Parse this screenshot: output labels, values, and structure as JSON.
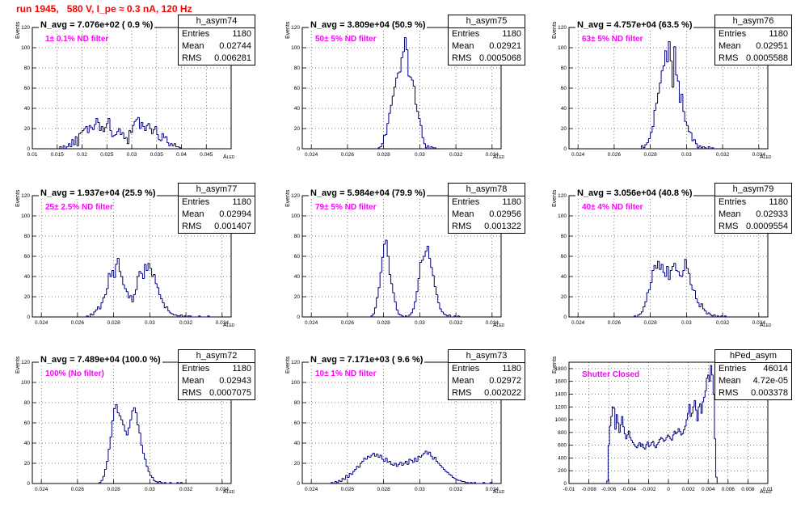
{
  "page": {
    "title": "run 1945,   580 V, I_pe ≈ 0.3 nA, 120 Hz",
    "ylabel": "Events",
    "xlabel_main": "A",
    "xlabel_sub": "LED"
  },
  "chart_data": [
    {
      "type": "histogram",
      "name": "h_asym74",
      "navg": "N_avg = 7.076e+02 ( 0.9 %)",
      "filter": "1± 0.1% ND filter",
      "stats": {
        "entries": "1180",
        "mean": "0.02744",
        "rms": "0.006281"
      },
      "xlim": [
        0.01,
        0.05
      ],
      "ylim": [
        0,
        120
      ],
      "xticks": [
        "0.01",
        "0.015",
        "0.02",
        "0.025",
        "0.03",
        "0.035",
        "0.04",
        "0.045"
      ],
      "yticks": [
        "0",
        "20",
        "40",
        "60",
        "80",
        "100",
        "120"
      ],
      "bin_edges": [
        0.0155,
        0.0399
      ],
      "values": [
        2,
        0,
        3,
        0,
        2,
        5,
        2,
        9,
        4,
        12,
        3,
        15,
        16,
        18,
        20,
        22,
        16,
        23,
        21,
        19,
        24,
        30,
        26,
        18,
        22,
        17,
        21,
        25,
        30,
        18,
        12,
        13,
        14,
        17,
        20,
        14,
        16,
        10,
        11,
        5,
        18,
        16,
        23,
        27,
        29,
        31,
        20,
        26,
        22,
        18,
        23,
        25,
        20,
        15,
        19,
        22,
        14,
        9,
        8,
        15,
        11,
        12,
        6,
        3,
        5,
        3,
        5,
        2,
        2,
        1
      ]
    },
    {
      "type": "histogram",
      "name": "h_asym75",
      "navg": "N_avg = 3.809e+04 (50.9 %)",
      "filter": "50± 5% ND filter",
      "stats": {
        "entries": "1180",
        "mean": "0.02921",
        "rms": "0.0005068"
      },
      "xlim": [
        0.0235,
        0.0345
      ],
      "ylim": [
        0,
        120
      ],
      "xticks": [
        "0.024",
        "0.026",
        "0.028",
        "0.03",
        "0.032",
        "0.034"
      ],
      "yticks": [
        "0",
        "20",
        "40",
        "60",
        "80",
        "100",
        "120"
      ],
      "bin_edges": [
        0.0277,
        0.0309
      ],
      "values": [
        1,
        2,
        5,
        13,
        14,
        25,
        35,
        43,
        52,
        61,
        70,
        75,
        76,
        90,
        96,
        110,
        98,
        72,
        71,
        68,
        62,
        44,
        37,
        30,
        23,
        11,
        5,
        1,
        3,
        0,
        2,
        1,
        1
      ]
    },
    {
      "type": "histogram",
      "name": "h_asym76",
      "navg": "N_avg = 4.757e+04 (63.5 %)",
      "filter": "63± 5% ND filter",
      "stats": {
        "entries": "1180",
        "mean": "0.02951",
        "rms": "0.0005588"
      },
      "xlim": [
        0.0235,
        0.0345
      ],
      "ylim": [
        0,
        120
      ],
      "xticks": [
        "0.024",
        "0.026",
        "0.028",
        "0.03",
        "0.032",
        "0.034"
      ],
      "yticks": [
        "0",
        "20",
        "40",
        "60",
        "80",
        "100",
        "120"
      ],
      "bin_edges": [
        0.0275,
        0.0315
      ],
      "values": [
        3,
        1,
        4,
        6,
        10,
        16,
        22,
        38,
        45,
        55,
        65,
        77,
        82,
        97,
        86,
        106,
        87,
        61,
        101,
        73,
        67,
        46,
        54,
        37,
        27,
        23,
        17,
        16,
        8,
        9,
        5,
        1,
        3,
        1,
        2,
        1,
        0,
        2,
        0,
        1
      ]
    },
    {
      "type": "histogram",
      "name": "h_asym77",
      "navg": "N_avg = 1.937e+04 (25.9 %)",
      "filter": "25± 2.5% ND filter",
      "stats": {
        "entries": "1180",
        "mean": "0.02994",
        "rms": "0.001407"
      },
      "xlim": [
        0.0235,
        0.0345
      ],
      "ylim": [
        0,
        120
      ],
      "xticks": [
        "0.024",
        "0.026",
        "0.028",
        "0.03",
        "0.032",
        "0.034"
      ],
      "yticks": [
        "0",
        "20",
        "40",
        "60",
        "80",
        "100",
        "120"
      ],
      "bin_edges": [
        0.0265,
        0.0333
      ],
      "values": [
        1,
        0,
        3,
        2,
        5,
        7,
        10,
        8,
        14,
        19,
        22,
        28,
        43,
        40,
        46,
        39,
        52,
        58,
        45,
        40,
        32,
        28,
        25,
        19,
        21,
        15,
        22,
        27,
        40,
        45,
        43,
        38,
        52,
        46,
        53,
        48,
        40,
        42,
        33,
        29,
        22,
        18,
        14,
        9,
        10,
        6,
        4,
        3,
        2,
        2,
        1,
        1,
        2,
        0,
        1,
        0,
        1,
        1,
        0,
        0,
        0,
        0,
        1,
        0,
        0,
        0,
        0,
        1
      ]
    },
    {
      "type": "histogram",
      "name": "h_asym78",
      "navg": "N_avg = 5.984e+04 (79.9 %)",
      "filter": "79± 5% ND filter",
      "stats": {
        "entries": "1180",
        "mean": "0.02956",
        "rms": "0.001322"
      },
      "xlim": [
        0.0235,
        0.0345
      ],
      "ylim": [
        0,
        120
      ],
      "xticks": [
        "0.024",
        "0.026",
        "0.028",
        "0.03",
        "0.032",
        "0.034"
      ],
      "yticks": [
        "0",
        "20",
        "40",
        "60",
        "80",
        "100",
        "120"
      ],
      "bin_edges": [
        0.0273,
        0.0322
      ],
      "values": [
        1,
        3,
        9,
        19,
        29,
        44,
        59,
        72,
        76,
        60,
        42,
        33,
        24,
        15,
        7,
        3,
        2,
        1,
        0,
        1,
        0,
        2,
        4,
        8,
        15,
        25,
        38,
        54,
        56,
        60,
        65,
        70,
        58,
        49,
        41,
        30,
        22,
        14,
        8,
        5,
        3,
        2,
        1,
        2,
        0,
        0,
        1,
        0,
        1
      ]
    },
    {
      "type": "histogram",
      "name": "h_asym79",
      "navg": "N_avg = 3.056e+04 (40.8 %)",
      "filter": "40± 4% ND filter",
      "stats": {
        "entries": "1180",
        "mean": "0.02933",
        "rms": "0.0009554"
      },
      "xlim": [
        0.0235,
        0.0345
      ],
      "ylim": [
        0,
        120
      ],
      "xticks": [
        "0.024",
        "0.026",
        "0.028",
        "0.03",
        "0.032",
        "0.034"
      ],
      "yticks": [
        "0",
        "20",
        "40",
        "60",
        "80",
        "100",
        "120"
      ],
      "bin_edges": [
        0.0271,
        0.0322
      ],
      "values": [
        1,
        0,
        2,
        3,
        5,
        10,
        15,
        24,
        27,
        34,
        46,
        51,
        48,
        55,
        47,
        52,
        44,
        40,
        50,
        37,
        46,
        50,
        53,
        46,
        45,
        41,
        40,
        46,
        57,
        48,
        43,
        32,
        27,
        26,
        18,
        14,
        10,
        13,
        8,
        6,
        3,
        4,
        2,
        1,
        2,
        0,
        1,
        0,
        1,
        0,
        1
      ]
    },
    {
      "type": "histogram",
      "name": "h_asym72",
      "navg": "N_avg = 7.489e+04 (100.0 %)",
      "filter": "100% (No filter)",
      "stats": {
        "entries": "1180",
        "mean": "0.02943",
        "rms": "0.0007075"
      },
      "xlim": [
        0.0235,
        0.0345
      ],
      "ylim": [
        0,
        120
      ],
      "xticks": [
        "0.024",
        "0.026",
        "0.028",
        "0.03",
        "0.032",
        "0.034"
      ],
      "yticks": [
        "0",
        "20",
        "40",
        "60",
        "80",
        "100",
        "120"
      ],
      "bin_edges": [
        0.0272,
        0.0318
      ],
      "values": [
        1,
        3,
        7,
        14,
        22,
        34,
        46,
        62,
        74,
        78,
        70,
        67,
        63,
        58,
        52,
        48,
        55,
        63,
        72,
        75,
        70,
        58,
        50,
        38,
        30,
        24,
        17,
        12,
        8,
        6,
        3,
        2,
        1,
        2,
        1,
        0,
        1,
        0,
        0,
        1,
        0,
        0,
        0,
        1,
        0,
        1
      ]
    },
    {
      "type": "histogram",
      "name": "h_asym73",
      "navg": "N_avg = 7.171e+03 ( 9.6 %)",
      "filter": "10± 1% ND filter",
      "stats": {
        "entries": "1180",
        "mean": "0.02972",
        "rms": "0.002022"
      },
      "xlim": [
        0.0235,
        0.0345
      ],
      "ylim": [
        0,
        120
      ],
      "xticks": [
        "0.024",
        "0.026",
        "0.028",
        "0.03",
        "0.032",
        "0.034"
      ],
      "yticks": [
        "0",
        "20",
        "40",
        "60",
        "80",
        "100",
        "120"
      ],
      "bin_edges": [
        0.0251,
        0.0341
      ],
      "values": [
        1,
        0,
        2,
        1,
        3,
        2,
        5,
        4,
        8,
        6,
        10,
        9,
        12,
        14,
        17,
        16,
        20,
        22,
        25,
        24,
        27,
        26,
        28,
        30,
        27,
        29,
        26,
        28,
        24,
        22,
        25,
        21,
        22,
        19,
        18,
        20,
        17,
        19,
        21,
        18,
        20,
        22,
        19,
        24,
        23,
        21,
        25,
        22,
        27,
        26,
        28,
        30,
        32,
        29,
        31,
        27,
        24,
        26,
        22,
        20,
        18,
        16,
        14,
        12,
        11,
        9,
        8,
        6,
        5,
        4,
        3,
        3,
        2,
        2,
        1,
        1,
        0,
        1,
        0,
        1,
        0,
        0,
        0,
        0,
        1,
        0,
        0,
        0,
        1,
        0
      ]
    },
    {
      "type": "histogram",
      "name": "hPed_asym",
      "navg": "",
      "filter": "Shutter Closed",
      "stats": {
        "entries": "46014",
        "mean": "4.72e-05",
        "rms": "0.003378"
      },
      "xlim": [
        -0.01,
        0.01
      ],
      "ylim": [
        0,
        1900
      ],
      "xticks": [
        "-0.01",
        "-0.008",
        "-0.006",
        "-0.004",
        "-0.002",
        "0",
        "0.002",
        "0.004",
        "0.006",
        "0.008",
        "0.01"
      ],
      "yticks": [
        "0",
        "200",
        "400",
        "600",
        "800",
        "1000",
        "1200",
        "1400",
        "1600",
        "1800"
      ],
      "bin_edges": [
        -0.0062,
        0.0049
      ],
      "values": [
        40,
        600,
        900,
        1050,
        1200,
        1180,
        850,
        1080,
        950,
        800,
        920,
        1050,
        890,
        780,
        700,
        760,
        820,
        720,
        680,
        640,
        610,
        580,
        560,
        600,
        640,
        580,
        620,
        560,
        540,
        610,
        650,
        580,
        600,
        640,
        660,
        590,
        560,
        610,
        640,
        690,
        720,
        700,
        660,
        680,
        720,
        760,
        740,
        700,
        680,
        760,
        820,
        780,
        800,
        860,
        820,
        760,
        780,
        840,
        900,
        1000,
        1100,
        1240,
        1050,
        1100,
        1200,
        1300,
        1150,
        980,
        1200,
        1250,
        1100,
        1280,
        1350,
        1450,
        1650,
        1700,
        1600,
        1850,
        1700,
        1400,
        700,
        100
      ]
    }
  ]
}
